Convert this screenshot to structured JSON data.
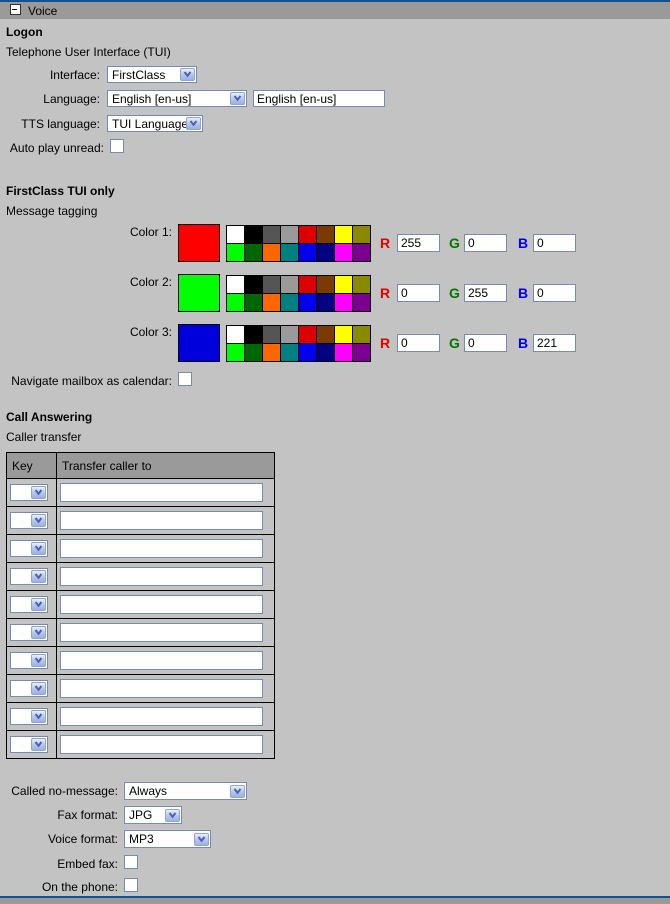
{
  "header": {
    "title": "Voice"
  },
  "logon": {
    "heading": "Logon",
    "subheading": "Telephone User Interface (TUI)",
    "interface": {
      "label": "Interface:",
      "value": "FirstClass"
    },
    "language": {
      "label": "Language:",
      "value": "English [en-us]",
      "text_value": "English [en-us]"
    },
    "tts_language": {
      "label": "TTS language:",
      "value": "TUI Language"
    },
    "auto_play_unread": {
      "label": "Auto play unread:",
      "checked": false
    }
  },
  "tui_only": {
    "heading": "FirstClass TUI only",
    "subheading": "Message tagging",
    "rgb_labels": {
      "r": "R",
      "g": "G",
      "b": "B"
    },
    "palette": [
      "#ffffff",
      "#000000",
      "#555555",
      "#9a9a9a",
      "#dd0000",
      "#7a3b00",
      "#ffff00",
      "#8a8a00",
      "#00ff00",
      "#006600",
      "#ff6600",
      "#008080",
      "#0000f0",
      "#000080",
      "#ff00ff",
      "#7b0090"
    ],
    "colors": [
      {
        "label": "Color 1:",
        "swatch": "#ff0000",
        "r": "255",
        "g": "0",
        "b": "0"
      },
      {
        "label": "Color 2:",
        "swatch": "#00ff00",
        "r": "0",
        "g": "255",
        "b": "0"
      },
      {
        "label": "Color 3:",
        "swatch": "#0000dd",
        "r": "0",
        "g": "0",
        "b": "221"
      }
    ],
    "navigate_mailbox": {
      "label": "Navigate mailbox as calendar:",
      "checked": false
    }
  },
  "call_answering": {
    "heading": "Call Answering",
    "subheading": "Caller transfer",
    "table": {
      "headers": [
        "Key",
        "Transfer caller to"
      ],
      "rows": [
        {
          "key": "",
          "transfer": ""
        },
        {
          "key": "",
          "transfer": ""
        },
        {
          "key": "",
          "transfer": ""
        },
        {
          "key": "",
          "transfer": ""
        },
        {
          "key": "",
          "transfer": ""
        },
        {
          "key": "",
          "transfer": ""
        },
        {
          "key": "",
          "transfer": ""
        },
        {
          "key": "",
          "transfer": ""
        },
        {
          "key": "",
          "transfer": ""
        },
        {
          "key": "",
          "transfer": ""
        }
      ]
    },
    "called_no_message": {
      "label": "Called no-message:",
      "value": "Always"
    },
    "fax_format": {
      "label": "Fax format:",
      "value": "JPG"
    },
    "voice_format": {
      "label": "Voice format:",
      "value": "MP3"
    },
    "embed_fax": {
      "label": "Embed fax:",
      "checked": false
    },
    "on_the_phone": {
      "label": "On the phone:",
      "checked": false
    }
  },
  "colors": {
    "accent_blue": "#155289",
    "bar_gray": "#9a9a9a",
    "page_bg": "#c3c3c3",
    "field_border": "#748cb0"
  }
}
